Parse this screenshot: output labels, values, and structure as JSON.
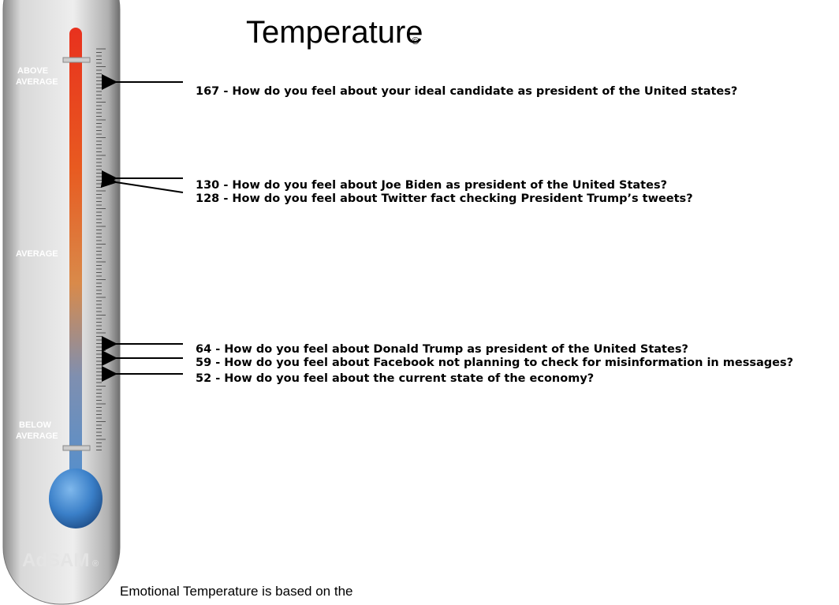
{
  "title": {
    "main": "Temperature",
    "mark": "©"
  },
  "thermometer": {
    "above": [
      "ABOVE",
      "AVERAGE"
    ],
    "average": "AVERAGE",
    "below": [
      "BELOW",
      "AVERAGE"
    ],
    "brand": "AdSAM",
    "brand_mark": "®"
  },
  "items": [
    "167 - How do you feel about your ideal candidate as president of the United states?",
    "130 - How do you feel about Joe Biden as president of the United States?",
    "128 - How do you feel about Twitter fact checking President Trump’s tweets?",
    "64 - How do you feel about Donald Trump as president of the United States?",
    "59 - How do you feel about Facebook not planning to check for misinformation in messages?",
    "52 - How do you feel about the current state of the economy?"
  ],
  "footnote": "Emotional Temperature is based on the"
}
